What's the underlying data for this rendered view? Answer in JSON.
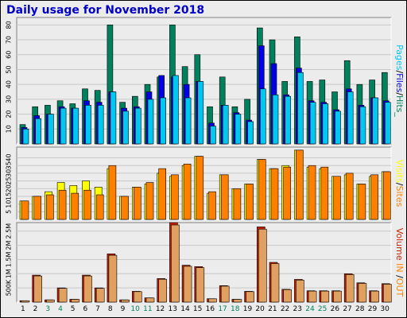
{
  "title": "Daily usage for November 2018",
  "colors": {
    "hits": "#00805c",
    "files": "#0000e0",
    "pages": "#00c8f0",
    "visits": "#ffff00",
    "sites": "#ff8000",
    "kbytes": "#c82000",
    "kbytes_light": "#e0a060",
    "weekend_label": "#00805c",
    "weekday_label": "#000000"
  },
  "chart_data": [
    {
      "type": "bar",
      "panel": "top",
      "right_label_parts": [
        {
          "text": "Pages",
          "color": "#00c8f0"
        },
        {
          "text": "/",
          "color": "#000000"
        },
        {
          "text": "Files",
          "color": "#0000e0"
        },
        {
          "text": "/",
          "color": "#000000"
        },
        {
          "text": "Hits_",
          "color": "#00805c"
        }
      ],
      "categories": [
        "1",
        "2",
        "3",
        "4",
        "5",
        "6",
        "7",
        "8",
        "9",
        "10",
        "11",
        "12",
        "13",
        "14",
        "15",
        "16",
        "17",
        "18",
        "19",
        "20",
        "21",
        "22",
        "23",
        "24",
        "25",
        "26",
        "27",
        "28",
        "29",
        "30"
      ],
      "y_ticks": [
        "10",
        "20",
        "30",
        "40",
        "50",
        "60",
        "70",
        "80"
      ],
      "ylim": [
        0,
        85
      ],
      "series": [
        {
          "name": "Hits",
          "values": [
            13,
            25,
            26,
            29,
            27,
            37,
            36,
            80,
            28,
            32,
            40,
            45,
            80,
            52,
            60,
            25,
            45,
            25,
            30,
            78,
            70,
            42,
            72,
            42,
            43,
            35,
            56,
            40,
            43,
            48
          ]
        },
        {
          "name": "Files",
          "values": [
            11,
            19,
            20,
            25,
            24,
            29,
            28,
            35,
            24,
            25,
            35,
            46,
            45,
            40,
            42,
            14,
            26,
            21,
            16,
            66,
            54,
            33,
            51,
            29,
            28,
            23,
            37,
            26,
            31,
            29
          ]
        },
        {
          "name": "Pages",
          "values": [
            10,
            17,
            20,
            24,
            24,
            26,
            26,
            35,
            22,
            24,
            30,
            31,
            46,
            31,
            42,
            12,
            26,
            20,
            15,
            37,
            33,
            32,
            48,
            28,
            27,
            22,
            35,
            25,
            31,
            28
          ]
        }
      ]
    },
    {
      "type": "bar",
      "panel": "middle",
      "right_label_parts": [
        {
          "text": "Visits",
          "color": "#ffff00"
        },
        {
          "text": "/",
          "color": "#000000"
        },
        {
          "text": "Sites",
          "color": "#ff8000"
        }
      ],
      "categories": [
        "1",
        "2",
        "3",
        "4",
        "5",
        "6",
        "7",
        "8",
        "9",
        "10",
        "11",
        "12",
        "13",
        "14",
        "15",
        "16",
        "17",
        "18",
        "19",
        "20",
        "21",
        "22",
        "23",
        "24",
        "25",
        "26",
        "27",
        "28",
        "29",
        "30"
      ],
      "y_ticks": [
        "5",
        "10",
        "15",
        "20",
        "25",
        "30",
        "35",
        "40"
      ],
      "ylim": [
        0,
        47
      ],
      "series": [
        {
          "name": "Visits",
          "values": [
            12,
            15,
            18,
            24,
            22,
            25,
            21,
            33,
            15,
            21,
            23,
            30,
            28,
            35,
            41,
            17,
            29,
            20,
            23,
            39,
            33,
            35,
            45,
            34,
            33,
            28,
            29,
            23,
            28,
            31
          ]
        },
        {
          "name": "Sites",
          "values": [
            12,
            15,
            16,
            19,
            17,
            19,
            16,
            35,
            15,
            21,
            24,
            33,
            29,
            36,
            41,
            18,
            29,
            20,
            23,
            39,
            33,
            34,
            45,
            35,
            34,
            28,
            30,
            23,
            29,
            31
          ]
        }
      ]
    },
    {
      "type": "bar",
      "panel": "bottom",
      "right_label_parts": [
        {
          "text": "Volume",
          "color": "#c82000"
        },
        {
          "text": "  IN ",
          "color": "#ff8000"
        },
        {
          "text": "/",
          "color": "#000000"
        },
        {
          "text": "OUT",
          "color": "#ff8000"
        }
      ],
      "categories": [
        "1",
        "2",
        "3",
        "4",
        "5",
        "6",
        "7",
        "8",
        "9",
        "10",
        "11",
        "12",
        "13",
        "14",
        "15",
        "16",
        "17",
        "18",
        "19",
        "20",
        "21",
        "22",
        "23",
        "24",
        "25",
        "26",
        "27",
        "28",
        "29",
        "30"
      ],
      "y_ticks": [
        "500K",
        "1M",
        "1.5M",
        "2M",
        "2.5M"
      ],
      "ylim": [
        0,
        2.8
      ],
      "units": "M",
      "series": [
        {
          "name": "Volume",
          "values": [
            0.05,
            0.95,
            0.08,
            0.5,
            0.1,
            0.95,
            0.5,
            1.7,
            0.08,
            0.38,
            0.15,
            0.83,
            2.8,
            1.3,
            1.25,
            0.12,
            0.58,
            0.1,
            0.38,
            2.65,
            1.4,
            0.45,
            0.8,
            0.4,
            0.4,
            0.4,
            1.0,
            0.68,
            0.4,
            0.65
          ]
        }
      ]
    }
  ]
}
